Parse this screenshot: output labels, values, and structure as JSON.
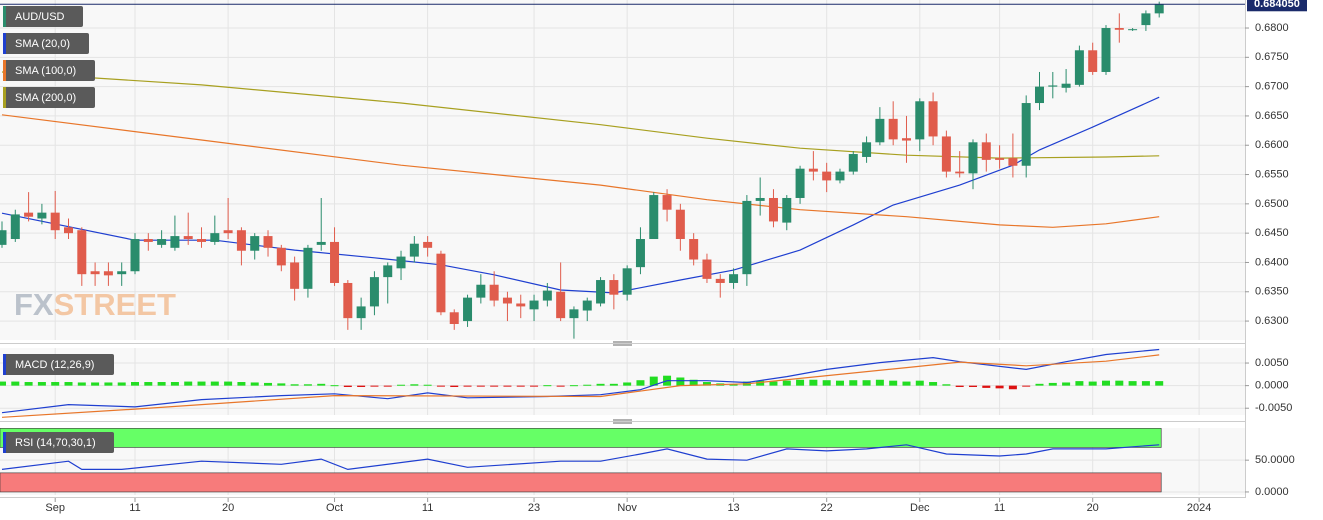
{
  "chart_data": [
    {
      "type": "candlestick",
      "title": "AUD/USD",
      "watermark": [
        "FX",
        "STREET"
      ],
      "up_color": "#2a8c6c",
      "down_color": "#e05c4c",
      "open": [
        0.643,
        0.644,
        0.6485,
        0.6475,
        0.6485,
        0.646,
        0.6455,
        0.6385,
        0.6385,
        0.638,
        0.6385,
        0.644,
        0.643,
        0.6425,
        0.6445,
        0.644,
        0.6435,
        0.6455,
        0.6455,
        0.642,
        0.6445,
        0.6425,
        0.64,
        0.6355,
        0.643,
        0.6435,
        0.6365,
        0.6305,
        0.6325,
        0.6375,
        0.639,
        0.641,
        0.6435,
        0.6415,
        0.6315,
        0.63,
        0.634,
        0.6362,
        0.634,
        0.633,
        0.632,
        0.6335,
        0.635,
        0.6305,
        0.6318,
        0.633,
        0.637,
        0.6345,
        0.6392,
        0.644,
        0.6515,
        0.649,
        0.644,
        0.6405,
        0.6372,
        0.6365,
        0.638,
        0.6505,
        0.651,
        0.6468,
        0.651,
        0.656,
        0.6555,
        0.654,
        0.6555,
        0.658,
        0.6605,
        0.6645,
        0.6612,
        0.661,
        0.6675,
        0.6615,
        0.6555,
        0.6552,
        0.6605,
        0.6578,
        0.6578,
        0.6565,
        0.6672,
        0.67,
        0.6698,
        0.6703,
        0.6762,
        0.6725,
        0.68,
        0.6797,
        0.6805,
        0.6825
      ],
      "high": [
        0.647,
        0.649,
        0.652,
        0.65,
        0.6522,
        0.6475,
        0.646,
        0.64,
        0.64,
        0.64,
        0.645,
        0.645,
        0.6455,
        0.648,
        0.6485,
        0.646,
        0.648,
        0.651,
        0.646,
        0.645,
        0.6455,
        0.643,
        0.641,
        0.643,
        0.651,
        0.646,
        0.637,
        0.634,
        0.6385,
        0.64,
        0.642,
        0.6445,
        0.6445,
        0.642,
        0.632,
        0.6345,
        0.638,
        0.6385,
        0.635,
        0.6345,
        0.6345,
        0.6365,
        0.64,
        0.6325,
        0.634,
        0.6375,
        0.638,
        0.6395,
        0.646,
        0.652,
        0.6525,
        0.65,
        0.645,
        0.6415,
        0.638,
        0.639,
        0.6515,
        0.6545,
        0.6525,
        0.6515,
        0.6565,
        0.659,
        0.657,
        0.656,
        0.659,
        0.6615,
        0.6665,
        0.6675,
        0.665,
        0.668,
        0.669,
        0.6625,
        0.659,
        0.661,
        0.662,
        0.66,
        0.662,
        0.6685,
        0.6725,
        0.6725,
        0.673,
        0.677,
        0.6775,
        0.6805,
        0.6825,
        0.68,
        0.683,
        0.6845
      ],
      "low": [
        0.6425,
        0.6435,
        0.647,
        0.6465,
        0.644,
        0.644,
        0.636,
        0.636,
        0.636,
        0.636,
        0.638,
        0.642,
        0.6425,
        0.642,
        0.643,
        0.6425,
        0.643,
        0.644,
        0.6395,
        0.6405,
        0.641,
        0.6385,
        0.6335,
        0.634,
        0.642,
        0.636,
        0.6285,
        0.6285,
        0.631,
        0.633,
        0.637,
        0.64,
        0.641,
        0.631,
        0.6285,
        0.629,
        0.633,
        0.6325,
        0.63,
        0.6305,
        0.63,
        0.6325,
        0.63,
        0.627,
        0.63,
        0.6325,
        0.632,
        0.6335,
        0.638,
        0.644,
        0.647,
        0.642,
        0.6395,
        0.6365,
        0.634,
        0.6355,
        0.636,
        0.648,
        0.646,
        0.6455,
        0.65,
        0.654,
        0.652,
        0.6535,
        0.655,
        0.657,
        0.66,
        0.66,
        0.657,
        0.659,
        0.66,
        0.6545,
        0.6545,
        0.6525,
        0.6555,
        0.656,
        0.6545,
        0.6545,
        0.666,
        0.668,
        0.669,
        0.67,
        0.672,
        0.672,
        0.6775,
        0.6795,
        0.6795,
        0.6818
      ],
      "close": [
        0.6455,
        0.6482,
        0.6478,
        0.6485,
        0.6455,
        0.645,
        0.638,
        0.638,
        0.6378,
        0.6385,
        0.644,
        0.6435,
        0.644,
        0.6445,
        0.644,
        0.6435,
        0.645,
        0.645,
        0.642,
        0.6445,
        0.6425,
        0.6395,
        0.6355,
        0.6425,
        0.6435,
        0.6365,
        0.6305,
        0.6325,
        0.6375,
        0.6395,
        0.641,
        0.6432,
        0.6425,
        0.6315,
        0.6295,
        0.634,
        0.6362,
        0.6335,
        0.633,
        0.6325,
        0.6335,
        0.6352,
        0.6305,
        0.632,
        0.6335,
        0.637,
        0.6345,
        0.639,
        0.644,
        0.6515,
        0.649,
        0.644,
        0.6405,
        0.6372,
        0.6365,
        0.638,
        0.6505,
        0.651,
        0.647,
        0.651,
        0.656,
        0.6555,
        0.654,
        0.6555,
        0.6585,
        0.6605,
        0.6645,
        0.661,
        0.6608,
        0.6675,
        0.6615,
        0.6555,
        0.6552,
        0.6605,
        0.6575,
        0.6575,
        0.6565,
        0.6672,
        0.67,
        0.6702,
        0.6705,
        0.6762,
        0.6725,
        0.68,
        0.6797,
        0.6798,
        0.6825,
        0.6841
      ],
      "series": [
        {
          "name": "SMA (20,0)",
          "color": "#1f3fd0",
          "x": [
            0,
            10,
            16,
            22,
            28,
            33,
            37,
            42,
            46,
            51,
            55,
            60,
            64,
            67,
            72,
            76,
            78,
            82,
            87
          ],
          "values": [
            0.6484,
            0.6438,
            0.6438,
            0.6421,
            0.6408,
            0.6396,
            0.6379,
            0.6353,
            0.6348,
            0.637,
            0.6387,
            0.6421,
            0.6464,
            0.6498,
            0.6532,
            0.6566,
            0.6592,
            0.6631,
            0.6682
          ]
        },
        {
          "name": "SMA (100,0)",
          "color": "#e8762a",
          "x": [
            0,
            15,
            30,
            45,
            53,
            60,
            68,
            75,
            79,
            83,
            87
          ],
          "values": [
            0.6652,
            0.6609,
            0.6566,
            0.6532,
            0.6507,
            0.649,
            0.6478,
            0.6464,
            0.646,
            0.6466,
            0.6478
          ]
        },
        {
          "name": "SMA (200,0)",
          "color": "#a8a020",
          "x": [
            0,
            15,
            30,
            45,
            53,
            60,
            68,
            75,
            83,
            87
          ],
          "values": [
            0.6725,
            0.6703,
            0.6672,
            0.6635,
            0.6612,
            0.6595,
            0.6583,
            0.6578,
            0.658,
            0.6582
          ]
        }
      ],
      "last_price": {
        "value": 0.68405,
        "label": "0.684050"
      },
      "xlim": [
        -0.15,
        93.45
      ],
      "ylim": [
        0.62677,
        0.68478
      ],
      "yticks": [
        {
          "value": 0.63,
          "label": "0.6300"
        },
        {
          "value": 0.635,
          "label": "0.6350"
        },
        {
          "value": 0.64,
          "label": "0.6400"
        },
        {
          "value": 0.645,
          "label": "0.6450"
        },
        {
          "value": 0.65,
          "label": "0.6500"
        },
        {
          "value": 0.655,
          "label": "0.6550"
        },
        {
          "value": 0.66,
          "label": "0.6600"
        },
        {
          "value": 0.665,
          "label": "0.6650"
        },
        {
          "value": 0.67,
          "label": "0.6700"
        },
        {
          "value": 0.675,
          "label": "0.6750"
        },
        {
          "value": 0.68,
          "label": "0.6800"
        }
      ],
      "grid": true
    },
    {
      "type": "macd",
      "title": "MACD (12,26,9)",
      "histogram_up": "#22dd22",
      "histogram_down": "#dd1111",
      "histogram": [
        0.0009,
        0.0009,
        0.0008,
        0.0008,
        0.0008,
        0.0008,
        0.0007,
        0.0007,
        0.0007,
        0.0007,
        0.0008,
        0.0008,
        0.0008,
        0.0008,
        0.0009,
        0.0009,
        0.0009,
        0.0009,
        0.0008,
        0.0007,
        0.0006,
        0.0005,
        0.0003,
        0.0003,
        0.0004,
        0.0001,
        -0.0003,
        -0.0003,
        -0.0002,
        -0.0001,
        0.0002,
        0.0003,
        0.0002,
        -0.0002,
        -0.0003,
        -0.0002,
        -0.0001,
        -0.0001,
        -0.0002,
        -0.0001,
        -0.0001,
        0.0001,
        -0.0001,
        0.0001,
        0.0002,
        0.0004,
        0.0004,
        0.0007,
        0.0012,
        0.002,
        0.0022,
        0.0018,
        0.0013,
        0.0008,
        0.0005,
        0.0003,
        0.0009,
        0.0011,
        0.0009,
        0.0011,
        0.0013,
        0.0013,
        0.0012,
        0.0011,
        0.0012,
        0.0012,
        0.0013,
        0.0011,
        0.0009,
        0.0011,
        0.0008,
        0.0003,
        -0.0003,
        -0.0003,
        -0.0005,
        -0.0006,
        -0.0008,
        -0.0002,
        0.0004,
        0.0006,
        0.0007,
        0.001,
        0.0009,
        0.0011,
        0.0011,
        0.001,
        0.001,
        0.001
      ],
      "series": [
        {
          "color": "#1f3fd0",
          "x": [
            0,
            5,
            10,
            15,
            21,
            25,
            29,
            32,
            35,
            41,
            45,
            48,
            50,
            53,
            56,
            59,
            62,
            66,
            70,
            72,
            77,
            80,
            83,
            87
          ],
          "values": [
            -0.006,
            -0.0042,
            -0.0047,
            -0.0031,
            -0.0022,
            -0.0018,
            -0.0029,
            -0.0016,
            -0.0027,
            -0.0024,
            -0.002,
            -0.0009,
            0.0011,
            0.0011,
            0.0007,
            0.002,
            0.0036,
            0.0051,
            0.0062,
            0.0053,
            0.0036,
            0.0053,
            0.0069,
            0.008
          ]
        },
        {
          "color": "#e8762a",
          "x": [
            0,
            10,
            25,
            45,
            51,
            56,
            68,
            72,
            77,
            83,
            87
          ],
          "values": [
            -0.007,
            -0.0052,
            -0.0022,
            -0.0024,
            0.0,
            0.0004,
            0.004,
            0.0052,
            0.0044,
            0.0054,
            0.0068
          ]
        }
      ],
      "xlim": [
        -0.15,
        93.45
      ],
      "ylim": [
        -0.0065,
        0.00833
      ],
      "yticks": [
        {
          "value": -0.005,
          "label": "-0.0050"
        },
        {
          "value": 0,
          "label": "0.0000"
        },
        {
          "value": 0.005,
          "label": "0.0050"
        }
      ],
      "grid": true
    },
    {
      "type": "rsi",
      "title": "RSI (14,70,30,1)",
      "bands": [
        {
          "from": 70,
          "to": 100,
          "color": "#66ff66"
        },
        {
          "from": 0,
          "to": 30,
          "color": "#f77b7b"
        }
      ],
      "series": [
        {
          "color": "#1f3fd0",
          "x": [
            0,
            5,
            6,
            9,
            15,
            21,
            24,
            26,
            32,
            35,
            42,
            45,
            48,
            50,
            53,
            56,
            59,
            62,
            65,
            68,
            71,
            75,
            77,
            79,
            83,
            85,
            87
          ],
          "values": [
            35.5,
            48.4,
            35.5,
            35.5,
            48.4,
            43.5,
            51.6,
            35.5,
            51.6,
            38.7,
            48.4,
            48.4,
            59.7,
            67.7,
            51.6,
            50,
            67.7,
            64.5,
            67.7,
            74.2,
            59.7,
            56.5,
            59.7,
            67.7,
            67.7,
            71,
            74.2
          ]
        }
      ],
      "xlim": [
        -0.15,
        93.45
      ],
      "ylim": [
        -4.8,
        100.6
      ],
      "yticks": [
        {
          "value": 0,
          "label": "0.0000"
        },
        {
          "value": 50,
          "label": "50.0000"
        }
      ],
      "xticks": [
        {
          "value": 4,
          "label": "Sep"
        },
        {
          "value": 10,
          "label": "11"
        },
        {
          "value": 17,
          "label": "20"
        },
        {
          "value": 25,
          "label": "Oct"
        },
        {
          "value": 32,
          "label": "11"
        },
        {
          "value": 40,
          "label": "23"
        },
        {
          "value": 47,
          "label": "Nov"
        },
        {
          "value": 55,
          "label": "13"
        },
        {
          "value": 62,
          "label": "22"
        },
        {
          "value": 69,
          "label": "Dec"
        },
        {
          "value": 75,
          "label": "11"
        },
        {
          "value": 82,
          "label": "20"
        },
        {
          "value": 90,
          "label": "2024"
        }
      ],
      "grid": true
    }
  ]
}
